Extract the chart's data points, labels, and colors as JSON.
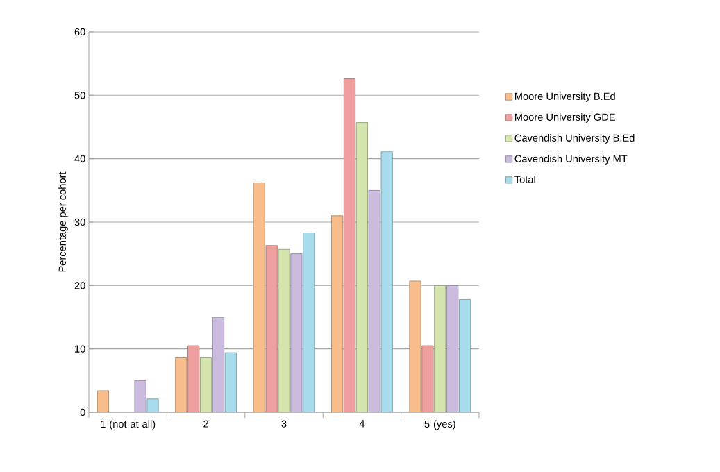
{
  "chart_data": {
    "type": "bar",
    "ylabel": "Percentage per cohort",
    "categories": [
      "1 (not at all)",
      "2",
      "3",
      "4",
      "5 (yes)"
    ],
    "series": [
      {
        "name": "Moore University B.Ed",
        "color": "#f9bd8c",
        "values": [
          3.4,
          8.6,
          36.2,
          31.0,
          20.7
        ]
      },
      {
        "name": "Moore University GDE",
        "color": "#ef9f9d",
        "values": [
          0,
          10.5,
          26.3,
          52.6,
          10.5
        ]
      },
      {
        "name": "Cavendish University B.Ed",
        "color": "#d3e4ad",
        "values": [
          0,
          8.6,
          25.7,
          45.7,
          20.0
        ]
      },
      {
        "name": "Cavendish University MT",
        "color": "#cbbcdf",
        "values": [
          5.0,
          15.0,
          25.0,
          35.0,
          20.0
        ]
      },
      {
        "name": "Total",
        "color": "#a6dcec",
        "values": [
          2.1,
          9.4,
          28.3,
          41.1,
          17.8
        ]
      }
    ],
    "ylim": [
      0,
      60
    ],
    "yticks": [
      0,
      10,
      20,
      30,
      40,
      50,
      60
    ],
    "grid": "y",
    "legend": "right"
  }
}
